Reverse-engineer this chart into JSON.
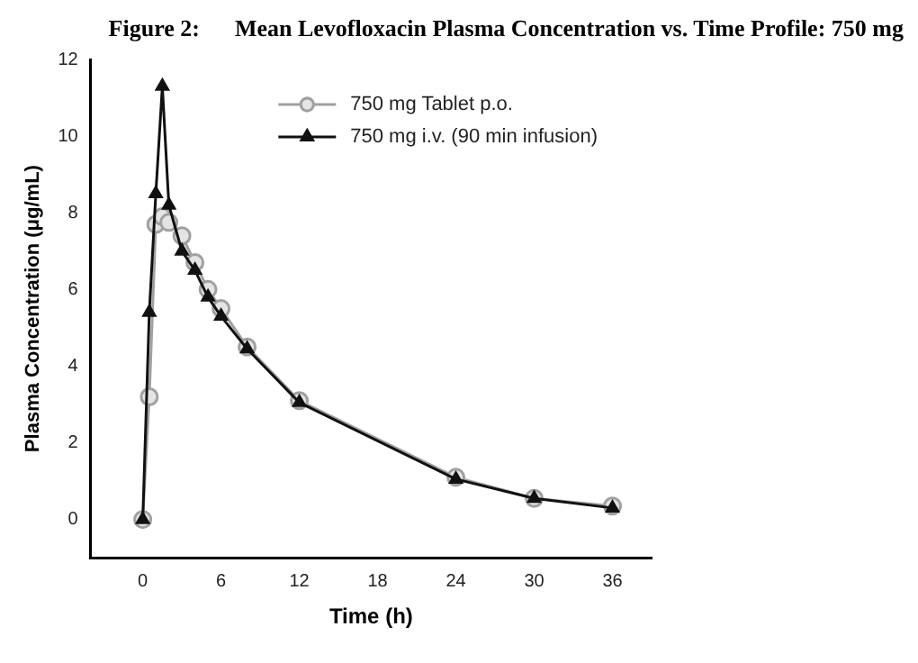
{
  "chart_data": {
    "type": "line",
    "title": "Figure 2:      Mean Levofloxacin Plasma Concentration vs. Time Profile: 750 mg",
    "xlabel": "Time (h)",
    "ylabel": "Plasma Concentration (μg/mL)",
    "x": [
      0,
      0.5,
      1,
      1.5,
      2,
      3,
      4,
      5,
      6,
      8,
      12,
      24,
      30,
      36
    ],
    "series": [
      {
        "name": "750 mg Tablet p.o.",
        "color": "#a0a0a0",
        "marker": "circle",
        "values": [
          0,
          3.2,
          7.7,
          7.9,
          7.75,
          7.4,
          6.7,
          6.0,
          5.5,
          4.5,
          3.1,
          1.1,
          0.55,
          0.35
        ]
      },
      {
        "name": "750 mg i.v. (90 min infusion)",
        "color": "#111111",
        "marker": "triangle",
        "values": [
          0,
          5.4,
          8.5,
          11.3,
          8.2,
          7.0,
          6.5,
          5.8,
          5.3,
          4.45,
          3.05,
          1.05,
          0.55,
          0.3
        ]
      }
    ],
    "xlim": [
      -4,
      39
    ],
    "xticks": [
      0,
      6,
      12,
      18,
      24,
      30,
      36
    ],
    "ylim": [
      -1,
      12
    ],
    "yticks": [
      0,
      2,
      4,
      6,
      8,
      10,
      12
    ],
    "grid": false,
    "legend": "top right"
  }
}
